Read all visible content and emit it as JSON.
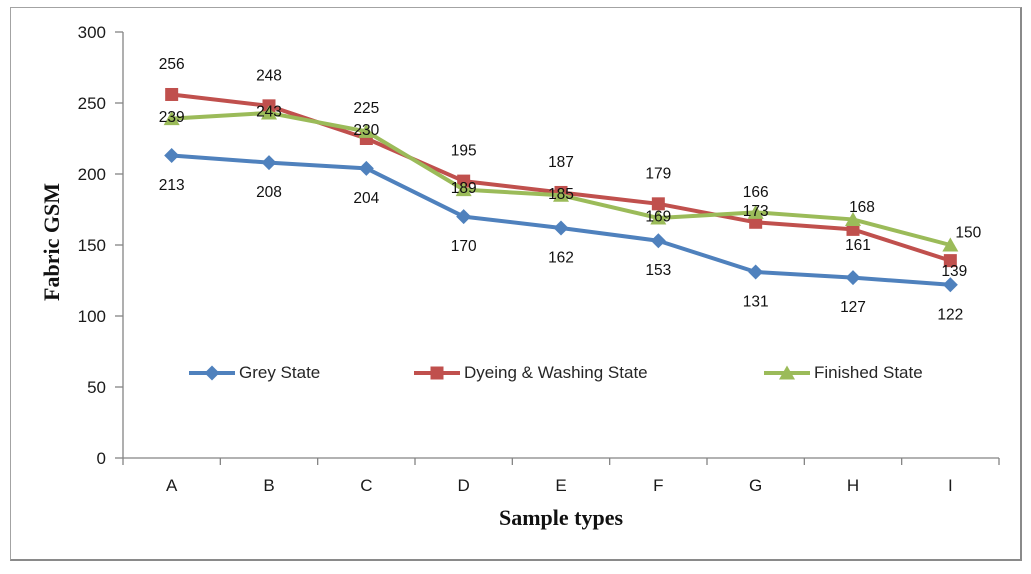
{
  "chart_data": {
    "type": "line",
    "title": "",
    "xlabel": "Sample types",
    "ylabel": "Fabric GSM",
    "categories": [
      "A",
      "B",
      "C",
      "D",
      "E",
      "F",
      "G",
      "H",
      "I"
    ],
    "series": [
      {
        "name": "Grey State",
        "color": "#4F81BD",
        "marker": "diamond",
        "values": [
          213,
          208,
          204,
          170,
          162,
          153,
          131,
          127,
          122
        ]
      },
      {
        "name": "Dyeing & Washing State",
        "color": "#C0504D",
        "marker": "square",
        "values": [
          256,
          248,
          225,
          195,
          187,
          179,
          166,
          161,
          139
        ]
      },
      {
        "name": "Finished State",
        "color": "#9BBB59",
        "marker": "triangle",
        "values": [
          239,
          243,
          230,
          189,
          185,
          169,
          173,
          168,
          150
        ]
      }
    ],
    "ylim": [
      0,
      300
    ],
    "yticks": [
      0,
      50,
      100,
      150,
      200,
      250,
      300
    ],
    "grid": false,
    "data_labels": true,
    "legend_position": "bottom-inside",
    "axis_color": "#848484",
    "text_color": "#1a1a1a",
    "frame_border_color": "#a3a3a3"
  }
}
